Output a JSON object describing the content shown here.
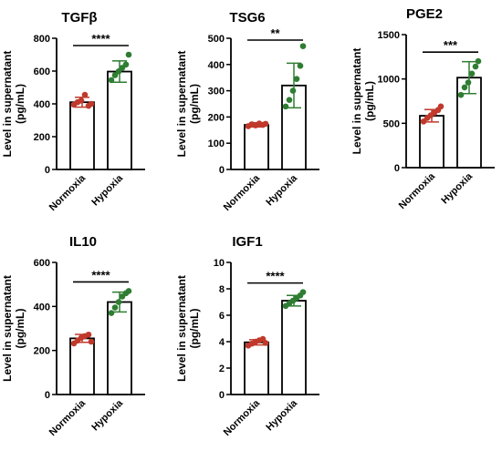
{
  "chart_data": [
    {
      "type": "bar",
      "title": "TGFβ",
      "ylabel": [
        "Level in supernatant",
        "(pg/mL)"
      ],
      "ylim": [
        0,
        800
      ],
      "yticks": [
        0,
        200,
        400,
        600,
        800
      ],
      "categories": [
        "Normoxia",
        "Hypoxia"
      ],
      "means": [
        410,
        597
      ],
      "errors": [
        30,
        65
      ],
      "points": [
        [
          395,
          410,
          420,
          455,
          388,
          400
        ],
        [
          545,
          575,
          598,
          620,
          640,
          700
        ]
      ],
      "colors": [
        "#c0392b",
        "#2e7d32"
      ],
      "significance": "****"
    },
    {
      "type": "bar",
      "title": "TSG6",
      "ylabel": [
        "Level in supernatant",
        "(pg/mL)"
      ],
      "ylim": [
        0,
        500
      ],
      "yticks": [
        0,
        100,
        200,
        300,
        400,
        500
      ],
      "categories": [
        "Normoxia",
        "Hypoxia"
      ],
      "means": [
        170,
        320
      ],
      "errors": [
        8,
        85
      ],
      "points": [
        [
          165,
          172,
          168,
          175,
          170,
          174
        ],
        [
          240,
          265,
          300,
          345,
          395,
          470
        ]
      ],
      "colors": [
        "#c0392b",
        "#2e7d32"
      ],
      "significance": "**"
    },
    {
      "type": "bar",
      "title": "PGE2",
      "ylabel": [
        "Level in supernatant",
        "(pg/mL)"
      ],
      "ylim": [
        0,
        1500
      ],
      "yticks": [
        0,
        500,
        1000,
        1500
      ],
      "categories": [
        "Normoxia",
        "Hypoxia"
      ],
      "means": [
        585,
        1015
      ],
      "errors": [
        70,
        180
      ],
      "points": [
        [
          520,
          560,
          590,
          620,
          650,
          690
        ],
        [
          820,
          905,
          960,
          1060,
          1140,
          1200
        ]
      ],
      "colors": [
        "#c0392b",
        "#2e7d32"
      ],
      "significance": "***"
    },
    {
      "type": "bar",
      "title": "IL10",
      "ylabel": [
        "Level in supernatant",
        "(pg/mL)"
      ],
      "ylim": [
        0,
        600
      ],
      "yticks": [
        0,
        200,
        400,
        600
      ],
      "categories": [
        "Normoxia",
        "Hypoxia"
      ],
      "means": [
        255,
        420
      ],
      "errors": [
        18,
        45
      ],
      "points": [
        [
          232,
          245,
          258,
          265,
          272,
          240
        ],
        [
          370,
          395,
          420,
          445,
          460,
          470
        ]
      ],
      "colors": [
        "#c0392b",
        "#2e7d32"
      ],
      "significance": "****"
    },
    {
      "type": "bar",
      "title": "IGF1",
      "ylabel": [
        "Level in supernatant",
        "(pg/mL)"
      ],
      "ylim": [
        0,
        10
      ],
      "yticks": [
        0,
        2,
        4,
        6,
        8,
        10
      ],
      "categories": [
        "Normoxia",
        "Hypoxia"
      ],
      "means": [
        3.95,
        7.1
      ],
      "errors": [
        0.2,
        0.4
      ],
      "points": [
        [
          3.7,
          3.85,
          4.0,
          4.1,
          4.2,
          3.9
        ],
        [
          6.7,
          6.9,
          7.1,
          7.3,
          7.5,
          7.75
        ]
      ],
      "colors": [
        "#c0392b",
        "#2e7d32"
      ],
      "significance": "****"
    }
  ]
}
